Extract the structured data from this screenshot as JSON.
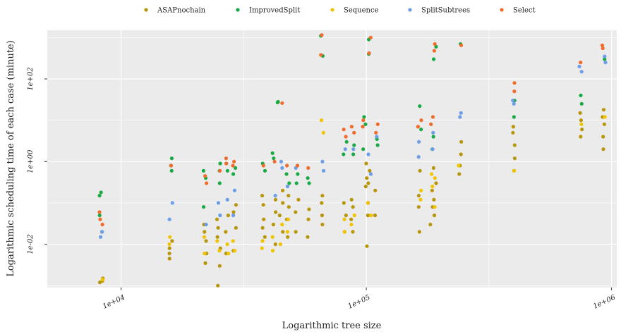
{
  "chart_data": {
    "type": "scatter",
    "xlabel": "Logarithmic tree size",
    "ylabel": "Logarithmic scheduling time of each case (minute)",
    "x_scale": "log10",
    "y_scale": "log10",
    "xlim": [
      5000,
      1050000
    ],
    "ylim": [
      0.0009,
      1500
    ],
    "x_ticks": [
      10000,
      100000,
      1000000
    ],
    "x_tick_labels": [
      "1e+04",
      "1e+05",
      "1e+06"
    ],
    "y_ticks": [
      0.01,
      1,
      100
    ],
    "y_tick_labels": [
      "1e-02",
      "1e+00",
      "1e+02"
    ],
    "grid": true,
    "legend_position": "top",
    "series": [
      {
        "name": "ASAPnochain",
        "color": "#b8960c",
        "points": [
          [
            8300,
            0.0012
          ],
          [
            8300,
            0.0013
          ],
          [
            8300,
            0.0015
          ],
          [
            16000,
            0.0045
          ],
          [
            16000,
            0.006
          ],
          [
            16000,
            0.008
          ],
          [
            16000,
            0.012
          ],
          [
            22000,
            0.0035
          ],
          [
            22000,
            0.006
          ],
          [
            22000,
            0.012
          ],
          [
            22000,
            0.02
          ],
          [
            22000,
            0.03
          ],
          [
            25000,
            0.001
          ],
          [
            25000,
            0.003
          ],
          [
            25000,
            0.008
          ],
          [
            25000,
            0.015
          ],
          [
            25000,
            0.025
          ],
          [
            25000,
            0.04
          ],
          [
            27000,
            0.006
          ],
          [
            27000,
            0.02
          ],
          [
            27000,
            0.05
          ],
          [
            29000,
            0.007
          ],
          [
            29000,
            0.025
          ],
          [
            29000,
            0.06
          ],
          [
            29000,
            0.09
          ],
          [
            38000,
            0.015
          ],
          [
            38000,
            0.025
          ],
          [
            38000,
            0.04
          ],
          [
            38000,
            0.09
          ],
          [
            38000,
            0.15
          ],
          [
            42000,
            0.01
          ],
          [
            42000,
            0.03
          ],
          [
            42000,
            0.06
          ],
          [
            42000,
            0.12
          ],
          [
            45000,
            0.02
          ],
          [
            45000,
            0.05
          ],
          [
            45000,
            0.1
          ],
          [
            45000,
            0.2
          ],
          [
            48000,
            0.015
          ],
          [
            48000,
            0.04
          ],
          [
            48000,
            0.08
          ],
          [
            48000,
            0.15
          ],
          [
            52000,
            0.02
          ],
          [
            52000,
            0.06
          ],
          [
            52000,
            0.12
          ],
          [
            58000,
            0.015
          ],
          [
            58000,
            0.04
          ],
          [
            58000,
            0.07
          ],
          [
            66000,
            0.03
          ],
          [
            66000,
            0.05
          ],
          [
            66000,
            0.1
          ],
          [
            66000,
            0.15
          ],
          [
            82000,
            0.02
          ],
          [
            82000,
            0.05
          ],
          [
            82000,
            0.1
          ],
          [
            88000,
            0.02
          ],
          [
            88000,
            0.04
          ],
          [
            88000,
            0.08
          ],
          [
            88000,
            0.12
          ],
          [
            100000,
            0.009
          ],
          [
            100000,
            0.05
          ],
          [
            100000,
            0.25
          ],
          [
            100000,
            0.4
          ],
          [
            100000,
            0.9
          ],
          [
            103000,
            0.1
          ],
          [
            103000,
            0.3
          ],
          [
            103000,
            0.6
          ],
          [
            110000,
            0.05
          ],
          [
            110000,
            0.2
          ],
          [
            165000,
            0.02
          ],
          [
            165000,
            0.08
          ],
          [
            165000,
            0.15
          ],
          [
            165000,
            0.6
          ],
          [
            185000,
            0.03
          ],
          [
            185000,
            0.08
          ],
          [
            185000,
            0.2
          ],
          [
            190000,
            0.05
          ],
          [
            190000,
            0.12
          ],
          [
            190000,
            0.3
          ],
          [
            190000,
            0.7
          ],
          [
            240000,
            0.5
          ],
          [
            240000,
            0.8
          ],
          [
            240000,
            1.5
          ],
          [
            240000,
            3
          ],
          [
            400000,
            0.6
          ],
          [
            400000,
            1.2
          ],
          [
            400000,
            2.5
          ],
          [
            400000,
            5
          ],
          [
            400000,
            7
          ],
          [
            750000,
            4
          ],
          [
            750000,
            6
          ],
          [
            750000,
            10
          ],
          [
            750000,
            15
          ],
          [
            930000,
            2
          ],
          [
            930000,
            4
          ],
          [
            930000,
            8
          ],
          [
            930000,
            12
          ],
          [
            930000,
            18
          ]
        ]
      },
      {
        "name": "ImprovedSplit",
        "color": "#1aaa44",
        "points": [
          [
            8300,
            0.02
          ],
          [
            8300,
            0.05
          ],
          [
            8300,
            0.15
          ],
          [
            8300,
            0.18
          ],
          [
            16000,
            0.6
          ],
          [
            16000,
            0.8
          ],
          [
            16000,
            1.2
          ],
          [
            22000,
            0.08
          ],
          [
            22000,
            0.4
          ],
          [
            22000,
            0.6
          ],
          [
            25000,
            0.3
          ],
          [
            25000,
            0.6
          ],
          [
            25000,
            0.9
          ],
          [
            27000,
            0.6
          ],
          [
            27000,
            0.9
          ],
          [
            29000,
            0.5
          ],
          [
            29000,
            0.7
          ],
          [
            38000,
            0.6
          ],
          [
            38000,
            0.9
          ],
          [
            42000,
            1.2
          ],
          [
            42000,
            1.6
          ],
          [
            44000,
            27
          ],
          [
            44000,
            28
          ],
          [
            48000,
            0.3
          ],
          [
            48000,
            0.5
          ],
          [
            52000,
            0.3
          ],
          [
            52000,
            0.5
          ],
          [
            58000,
            0.3
          ],
          [
            58000,
            0.4
          ],
          [
            66000,
            360
          ],
          [
            66000,
            1100
          ],
          [
            82000,
            1.5
          ],
          [
            82000,
            3
          ],
          [
            88000,
            1.5
          ],
          [
            88000,
            2.5
          ],
          [
            98000,
            2
          ],
          [
            98000,
            8
          ],
          [
            98000,
            12
          ],
          [
            103000,
            900
          ],
          [
            103000,
            400
          ],
          [
            110000,
            2.5
          ],
          [
            110000,
            3.5
          ],
          [
            165000,
            6
          ],
          [
            165000,
            22
          ],
          [
            185000,
            2
          ],
          [
            185000,
            4
          ],
          [
            190000,
            600
          ],
          [
            190000,
            300
          ],
          [
            240000,
            700
          ],
          [
            400000,
            30
          ],
          [
            400000,
            12
          ],
          [
            750000,
            25
          ],
          [
            750000,
            40
          ],
          [
            930000,
            300
          ]
        ]
      },
      {
        "name": "Sequence",
        "color": "#f0c400",
        "points": [
          [
            8300,
            0.0014
          ],
          [
            16000,
            0.01
          ],
          [
            16000,
            0.015
          ],
          [
            22000,
            0.006
          ],
          [
            22000,
            0.015
          ],
          [
            25000,
            0.007
          ],
          [
            25000,
            0.012
          ],
          [
            27000,
            0.006
          ],
          [
            27000,
            0.01
          ],
          [
            29000,
            0.007
          ],
          [
            29000,
            0.012
          ],
          [
            38000,
            0.008
          ],
          [
            38000,
            0.012
          ],
          [
            42000,
            0.007
          ],
          [
            42000,
            0.015
          ],
          [
            45000,
            0.01
          ],
          [
            45000,
            0.03
          ],
          [
            48000,
            0.02
          ],
          [
            48000,
            0.04
          ],
          [
            66000,
            10
          ],
          [
            66000,
            5
          ],
          [
            82000,
            0.02
          ],
          [
            82000,
            0.04
          ],
          [
            88000,
            0.03
          ],
          [
            88000,
            0.05
          ],
          [
            103000,
            0.05
          ],
          [
            103000,
            0.1
          ],
          [
            165000,
            0.12
          ],
          [
            165000,
            0.2
          ],
          [
            185000,
            0.25
          ],
          [
            185000,
            0.5
          ],
          [
            190000,
            0.08
          ],
          [
            190000,
            0.4
          ],
          [
            240000,
            0.8
          ],
          [
            400000,
            0.6
          ],
          [
            750000,
            8
          ],
          [
            930000,
            12
          ]
        ]
      },
      {
        "name": "SplitSubtrees",
        "color": "#6b9de8",
        "points": [
          [
            8300,
            0.015
          ],
          [
            8300,
            0.02
          ],
          [
            16000,
            0.04
          ],
          [
            16000,
            0.1
          ],
          [
            22000,
            0.03
          ],
          [
            25000,
            0.05
          ],
          [
            25000,
            0.1
          ],
          [
            27000,
            0.12
          ],
          [
            29000,
            0.05
          ],
          [
            29000,
            0.2
          ],
          [
            42000,
            0.15
          ],
          [
            45000,
            1
          ],
          [
            45000,
            0.7
          ],
          [
            48000,
            0.25
          ],
          [
            52000,
            0.7
          ],
          [
            66000,
            0.6
          ],
          [
            66000,
            1
          ],
          [
            82000,
            2
          ],
          [
            88000,
            2
          ],
          [
            103000,
            0.5
          ],
          [
            103000,
            1.5
          ],
          [
            110000,
            4
          ],
          [
            165000,
            1.3
          ],
          [
            165000,
            3
          ],
          [
            185000,
            2
          ],
          [
            190000,
            5
          ],
          [
            240000,
            12
          ],
          [
            240000,
            15
          ],
          [
            400000,
            30
          ],
          [
            400000,
            25
          ],
          [
            750000,
            150
          ],
          [
            750000,
            200
          ],
          [
            930000,
            250
          ],
          [
            930000,
            350
          ]
        ]
      },
      {
        "name": "Select",
        "color": "#f26b2a",
        "points": [
          [
            8300,
            0.03
          ],
          [
            8300,
            0.04
          ],
          [
            8300,
            0.06
          ],
          [
            16000,
            0.8
          ],
          [
            22000,
            0.3
          ],
          [
            22000,
            0.45
          ],
          [
            25000,
            0.6
          ],
          [
            27000,
            0.9
          ],
          [
            27000,
            1.2
          ],
          [
            29000,
            0.8
          ],
          [
            29000,
            1
          ],
          [
            38000,
            0.8
          ],
          [
            42000,
            1
          ],
          [
            45000,
            26
          ],
          [
            48000,
            0.8
          ],
          [
            52000,
            0.8
          ],
          [
            58000,
            0.7
          ],
          [
            66000,
            380
          ],
          [
            66000,
            1150
          ],
          [
            82000,
            4
          ],
          [
            82000,
            6
          ],
          [
            88000,
            5
          ],
          [
            88000,
            7
          ],
          [
            98000,
            7
          ],
          [
            98000,
            10
          ],
          [
            103000,
            420
          ],
          [
            103000,
            1000
          ],
          [
            110000,
            5
          ],
          [
            110000,
            8
          ],
          [
            165000,
            7
          ],
          [
            165000,
            10
          ],
          [
            185000,
            8
          ],
          [
            185000,
            12
          ],
          [
            190000,
            480
          ],
          [
            190000,
            700
          ],
          [
            240000,
            650
          ],
          [
            400000,
            50
          ],
          [
            400000,
            80
          ],
          [
            750000,
            250
          ],
          [
            930000,
            550
          ],
          [
            930000,
            650
          ]
        ]
      }
    ]
  }
}
